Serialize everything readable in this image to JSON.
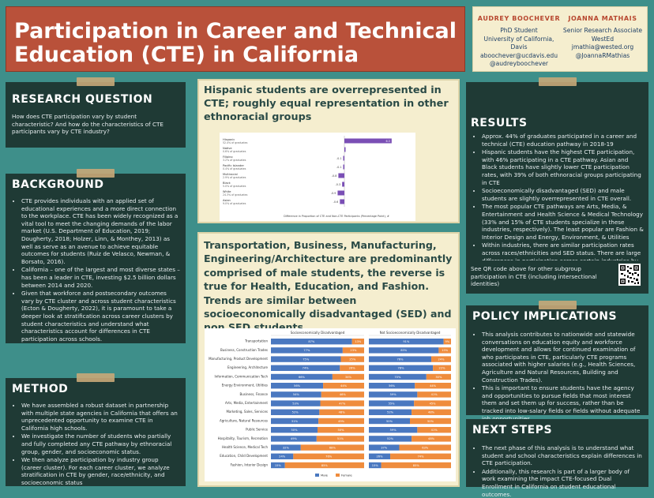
{
  "header": {
    "title_line1": "Participation in Career and Technical",
    "title_line2": "Education (CTE) in California"
  },
  "authors": [
    {
      "name": "AUDREY BOOCHEVER",
      "lines": [
        "PhD Student",
        "University of California, Davis",
        "aboochever@ucdavis.edu",
        "@audreyboochever"
      ]
    },
    {
      "name": "JOANNA MATHAIS",
      "lines": [
        "Senior Research Associate",
        "WestEd",
        "jmathia@wested.org",
        "@JoannaRMathias"
      ]
    }
  ],
  "research_question": {
    "title": "RESEARCH QUESTION",
    "text": "How does CTE participation vary by student characteristic? And how do the characteristics of CTE participants vary by CTE industry?"
  },
  "background": {
    "title": "BACKGROUND",
    "items": [
      "CTE provides individuals with an applied set of educational experiences and a more direct connection to the workplace. CTE has been widely recognized as a vital tool to meet the changing demands of the labor market (U.S. Department of Education, 2019; Dougherty, 2018; Holzer, Linn, & Monthey, 2013) as well as serve as an avenue to achieve equitable outcomes for students (Ruiz de Velasco, Newman, & Borsato, 2016).",
      "California – one of the largest and most diverse states – has been a leader in CTE, investing $2.5 billion dollars between 2014 and 2020.",
      "Given that workforce and postsecondary outcomes vary by CTE cluster and across student characteristics (Ecton & Dougherty, 2022), it is paramount to take a deeper look at stratification across career clusters by student characteristics and understand what characteristics account for differences in CTE participation across schools."
    ]
  },
  "method": {
    "title": "METHOD",
    "items": [
      "We have assembled a robust dataset in partnership with multiple state agencies in California that offers an unprecedented opportunity to examine CTE in California high schools.",
      "We investigate the number of students who partially and fully completed any CTE pathway by ethnoracial group, gender, and socioeconomic status.",
      "We then analyze participation by industry group (career cluster). For each career cluster, we analyze stratification in CTE by gender, race/ethnicity, and socioeconomic status"
    ]
  },
  "chart1": {
    "heading": "Hispanic students are overrepresented in CTE; roughly equal representation in other ethnoracial groups",
    "footnote": "Difference in Proportion of CTE and Non-CTE Participants (Percentage Point), #"
  },
  "chart1_data": {
    "type": "bar",
    "orientation": "horizontal",
    "categories": [
      {
        "name": "Hispanic",
        "sub": "52.4% of graduates"
      },
      {
        "name": "Native",
        "sub": "0.6% of graduates"
      },
      {
        "name": "Filipino",
        "sub": "3.2% of graduates"
      },
      {
        "name": "Pacific Islander",
        "sub": "0.4% of graduates"
      },
      {
        "name": "Multiracial",
        "sub": "2.9% of graduates"
      },
      {
        "name": "Black",
        "sub": "5.0% of graduates"
      },
      {
        "name": "White",
        "sub": "24.3% of graduates"
      },
      {
        "name": "Asian",
        "sub": "9.0% of graduates"
      }
    ],
    "values": [
      6.3,
      -0.0,
      -0.1,
      -0.1,
      -0.8,
      -0.3,
      -0.9,
      -0.6
    ],
    "labels": [
      "6.3",
      "-0.0",
      "-0.1",
      "-0.1",
      "-0.8",
      "-0.3",
      "-0.9",
      "-0.6"
    ],
    "color": "#7a4fb5"
  },
  "chart2": {
    "heading": "Transportation, Business, Manufacturing, Engineering/Architecture are predominantly comprised of male students, the reverse is true for Health, Education, and Fashion. Trends are similar between socioeconomically disadvantaged (SED) and non SED students.",
    "panel_left": "Socioeconomically Disadvantaged",
    "panel_right": "Not Socioeconomically Disadvantaged",
    "legend_male": "Male",
    "legend_female": "Female"
  },
  "chart2_data": {
    "type": "bar",
    "stacked": true,
    "orientation": "horizontal",
    "categories": [
      "Transportation",
      "Business, Construction Trades",
      "Manufacturing, Product Development",
      "Engineering, Architecture",
      "Information, Communication Tech",
      "Energy Environment, Utilities",
      "Business, Finance",
      "Arts, Media, Entertainment",
      "Marketing, Sales, Services",
      "Agriculture, Natural Resources",
      "Public Service",
      "Hospitality, Tourism, Recreation",
      "Health Science, Medical Tech",
      "Education, Child Development",
      "Fashion, Interior Design"
    ],
    "series": [
      {
        "name": "Male",
        "color": "#4a78c0",
        "sed": [
          87,
          77,
          75,
          74,
          66,
          56,
          54,
          53,
          52,
          51,
          50,
          49,
          32,
          24,
          15
        ],
        "non_sed": [
          91,
          85,
          76,
          78,
          70,
          56,
          59,
          55,
          52,
          50,
          59,
          52,
          37,
          26,
          15
        ]
      },
      {
        "name": "Female",
        "color": "#ef8c3d",
        "sed": [
          13,
          23,
          25,
          26,
          34,
          44,
          46,
          47,
          48,
          49,
          50,
          51,
          68,
          76,
          85
        ],
        "non_sed": [
          9,
          15,
          24,
          22,
          30,
          44,
          41,
          45,
          48,
          50,
          41,
          48,
          63,
          74,
          85
        ]
      }
    ],
    "sed_labels": {
      "male": [
        "87%",
        "77%",
        "75%",
        "74%",
        "66%",
        "56%",
        "54%",
        "53%",
        "52%",
        "51%",
        "50%",
        "49%",
        "32%",
        "24%",
        "15%"
      ],
      "female": [
        "13%",
        "23%",
        "25%",
        "26%",
        "34%",
        "44%",
        "46%",
        "47%",
        "48%",
        "49%",
        "50%",
        "51%",
        "68%",
        "76%",
        "85%"
      ]
    },
    "non_sed_labels": {
      "male": [
        "91%",
        "85%",
        "76%",
        "78%",
        "70%",
        "56%",
        "59%",
        "55%",
        "52%",
        "50%",
        "59%",
        "52%",
        "37%",
        "26%",
        "15%"
      ],
      "female": [
        "9%",
        "15%",
        "24%",
        "22%",
        "30%",
        "44%",
        "41%",
        "45%",
        "48%",
        "50%",
        "41%",
        "48%",
        "63%",
        "74%",
        "85%"
      ]
    },
    "xlim": [
      0,
      100
    ]
  },
  "results": {
    "title": "RESULTS",
    "items": [
      "Approx. 44% of graduates participated in a career and technical (CTE) education pathway in 2018-19",
      "Hispanic students have the highest CTE participation, with 46% participating in a CTE pathway. Asian and Black students have slightly lower CTE participation rates, with 39% of both ethnoracial groups participating in CTE",
      "Socioeconomically disadvantaged (SED) and male students are slightly overrepresented in CTE overall.",
      "The most popular CTE pathways are Arts, Media, & Entertainment and Health Science & Medical Technology (33% and 15% of CTE students specialize in these industries, respectively). The least popular are Fashion & Interior Design and Energy, Environment, & Utilities",
      "Within industries, there are similar participation rates across races/ethnicities and SED status. There are large differences in participation across certain industries by gender. See bottom visual."
    ]
  },
  "qr": {
    "text": "See QR code above for other subgroup participation in CTE (including intersectional identities)"
  },
  "policy": {
    "title": "POLICY IMPLICATIONS",
    "items": [
      "This analysis contributes to nationwide and statewide conversations on education equity and workforce development and allows for continued examination of who participates in CTE, particularly CTE programs associated with higher salaries (e.g., Health Sciences, Agriculture and Natural Resources, Building and Construction Trades).",
      "This is important to ensure students have the agency and opportunities to pursue fields that most interest them and set them up for success, rather than be tracked into low-salary fields or fields without adequate job opportunities."
    ]
  },
  "next": {
    "title": "NEXT STEPS",
    "items": [
      "The next phase of this analysis is to understand what student and school characteristics explain differences in CTE participation.",
      "Additionally, this research is part of a larger body of work examining the impact CTE-focused Dual Enrollment in California on student educational outcomes."
    ]
  }
}
